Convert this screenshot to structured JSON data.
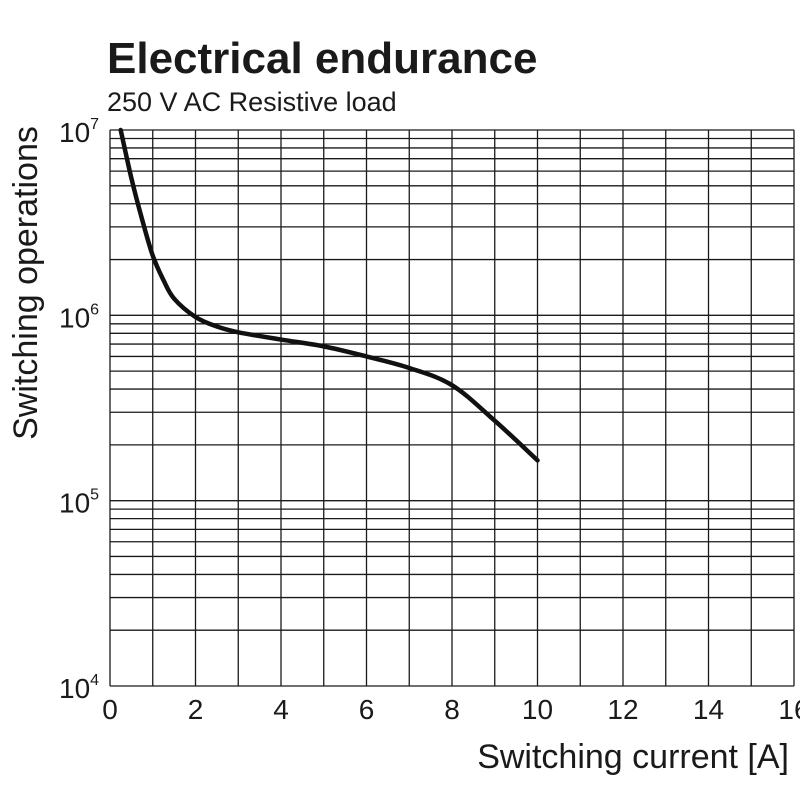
{
  "chart_data": {
    "type": "line",
    "title": "Electrical endurance",
    "subtitle": "250 V AC Resistive load",
    "xlabel": "Switching current [A]",
    "ylabel": "Switching operations",
    "xlim": [
      0,
      16
    ],
    "ylim": [
      10000,
      10000000
    ],
    "yscale": "log",
    "grid": true,
    "x_ticks": [
      "0",
      "2",
      "4",
      "6",
      "8",
      "10",
      "12",
      "14",
      "16"
    ],
    "y_ticks": [
      {
        "base": "10",
        "exp": "4"
      },
      {
        "base": "10",
        "exp": "5"
      },
      {
        "base": "10",
        "exp": "6"
      },
      {
        "base": "10",
        "exp": "7"
      }
    ],
    "series": [
      {
        "x": [
          0.25,
          0.5,
          0.75,
          1.0,
          1.25,
          1.5,
          2.0,
          2.5,
          3.0,
          4.0,
          5.0,
          6.0,
          7.0,
          8.0,
          9.0,
          10.0
        ],
        "y": [
          10000000,
          5500000,
          3300000,
          2100000,
          1550000,
          1230000,
          980000,
          870000,
          810000,
          740000,
          680000,
          600000,
          520000,
          420000,
          270000,
          165000
        ]
      }
    ]
  }
}
